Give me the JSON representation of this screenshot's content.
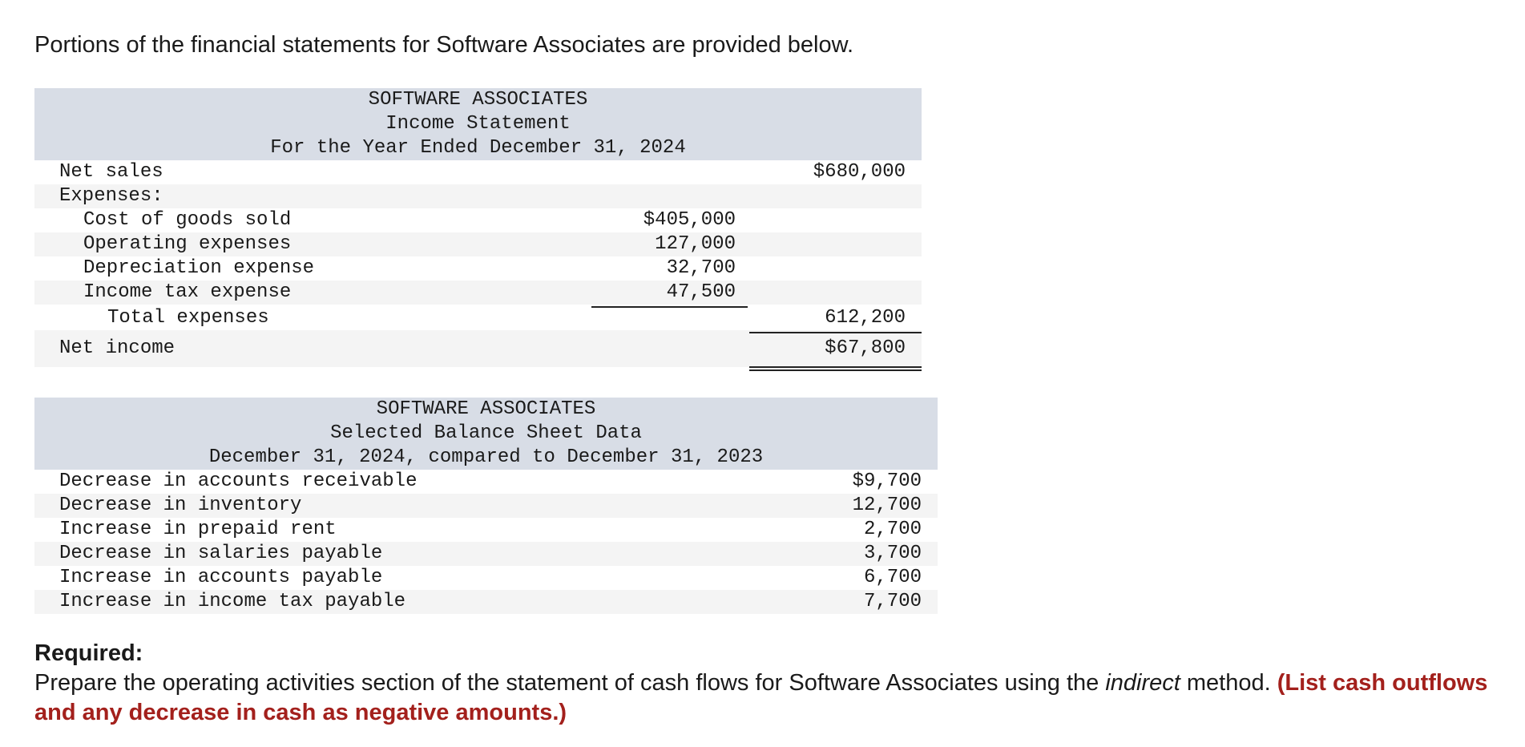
{
  "intro": "Portions of the financial statements for Software Associates are provided below.",
  "income_statement": {
    "header": [
      "SOFTWARE ASSOCIATES",
      "Income Statement",
      "For the Year Ended December 31, 2024"
    ],
    "net_sales_label": "Net sales",
    "net_sales_value": "$680,000",
    "expenses_label": "Expenses:",
    "expenses": [
      {
        "label": "Cost of goods sold",
        "value": "$405,000"
      },
      {
        "label": "Operating expenses",
        "value": "127,000"
      },
      {
        "label": "Depreciation expense",
        "value": "32,700"
      },
      {
        "label": "Income tax expense",
        "value": "47,500"
      }
    ],
    "total_expenses_label": "Total expenses",
    "total_expenses_value": "612,200",
    "net_income_label": "Net income",
    "net_income_value": "$67,800"
  },
  "balance_sheet": {
    "header": [
      "SOFTWARE ASSOCIATES",
      "Selected Balance Sheet Data",
      "December 31, 2024, compared to December 31, 2023"
    ],
    "rows": [
      {
        "label": "Decrease in accounts receivable",
        "value": "$9,700"
      },
      {
        "label": "Decrease in inventory",
        "value": "12,700"
      },
      {
        "label": "Increase in prepaid rent",
        "value": "2,700"
      },
      {
        "label": "Decrease in salaries payable",
        "value": "3,700"
      },
      {
        "label": "Increase in accounts payable",
        "value": "6,700"
      },
      {
        "label": "Increase in income tax payable",
        "value": "7,700"
      }
    ]
  },
  "required": {
    "title": "Required:",
    "text_before": "Prepare the operating activities section of the statement of cash flows for Software Associates using the ",
    "italic": "indirect",
    "text_after": " method. ",
    "note": "(List cash outflows and any decrease in cash as negative amounts.)"
  },
  "colors": {
    "header_bg": "#d8dde6",
    "alt_row_bg": "#f4f4f4",
    "note_red": "#a3201c"
  }
}
